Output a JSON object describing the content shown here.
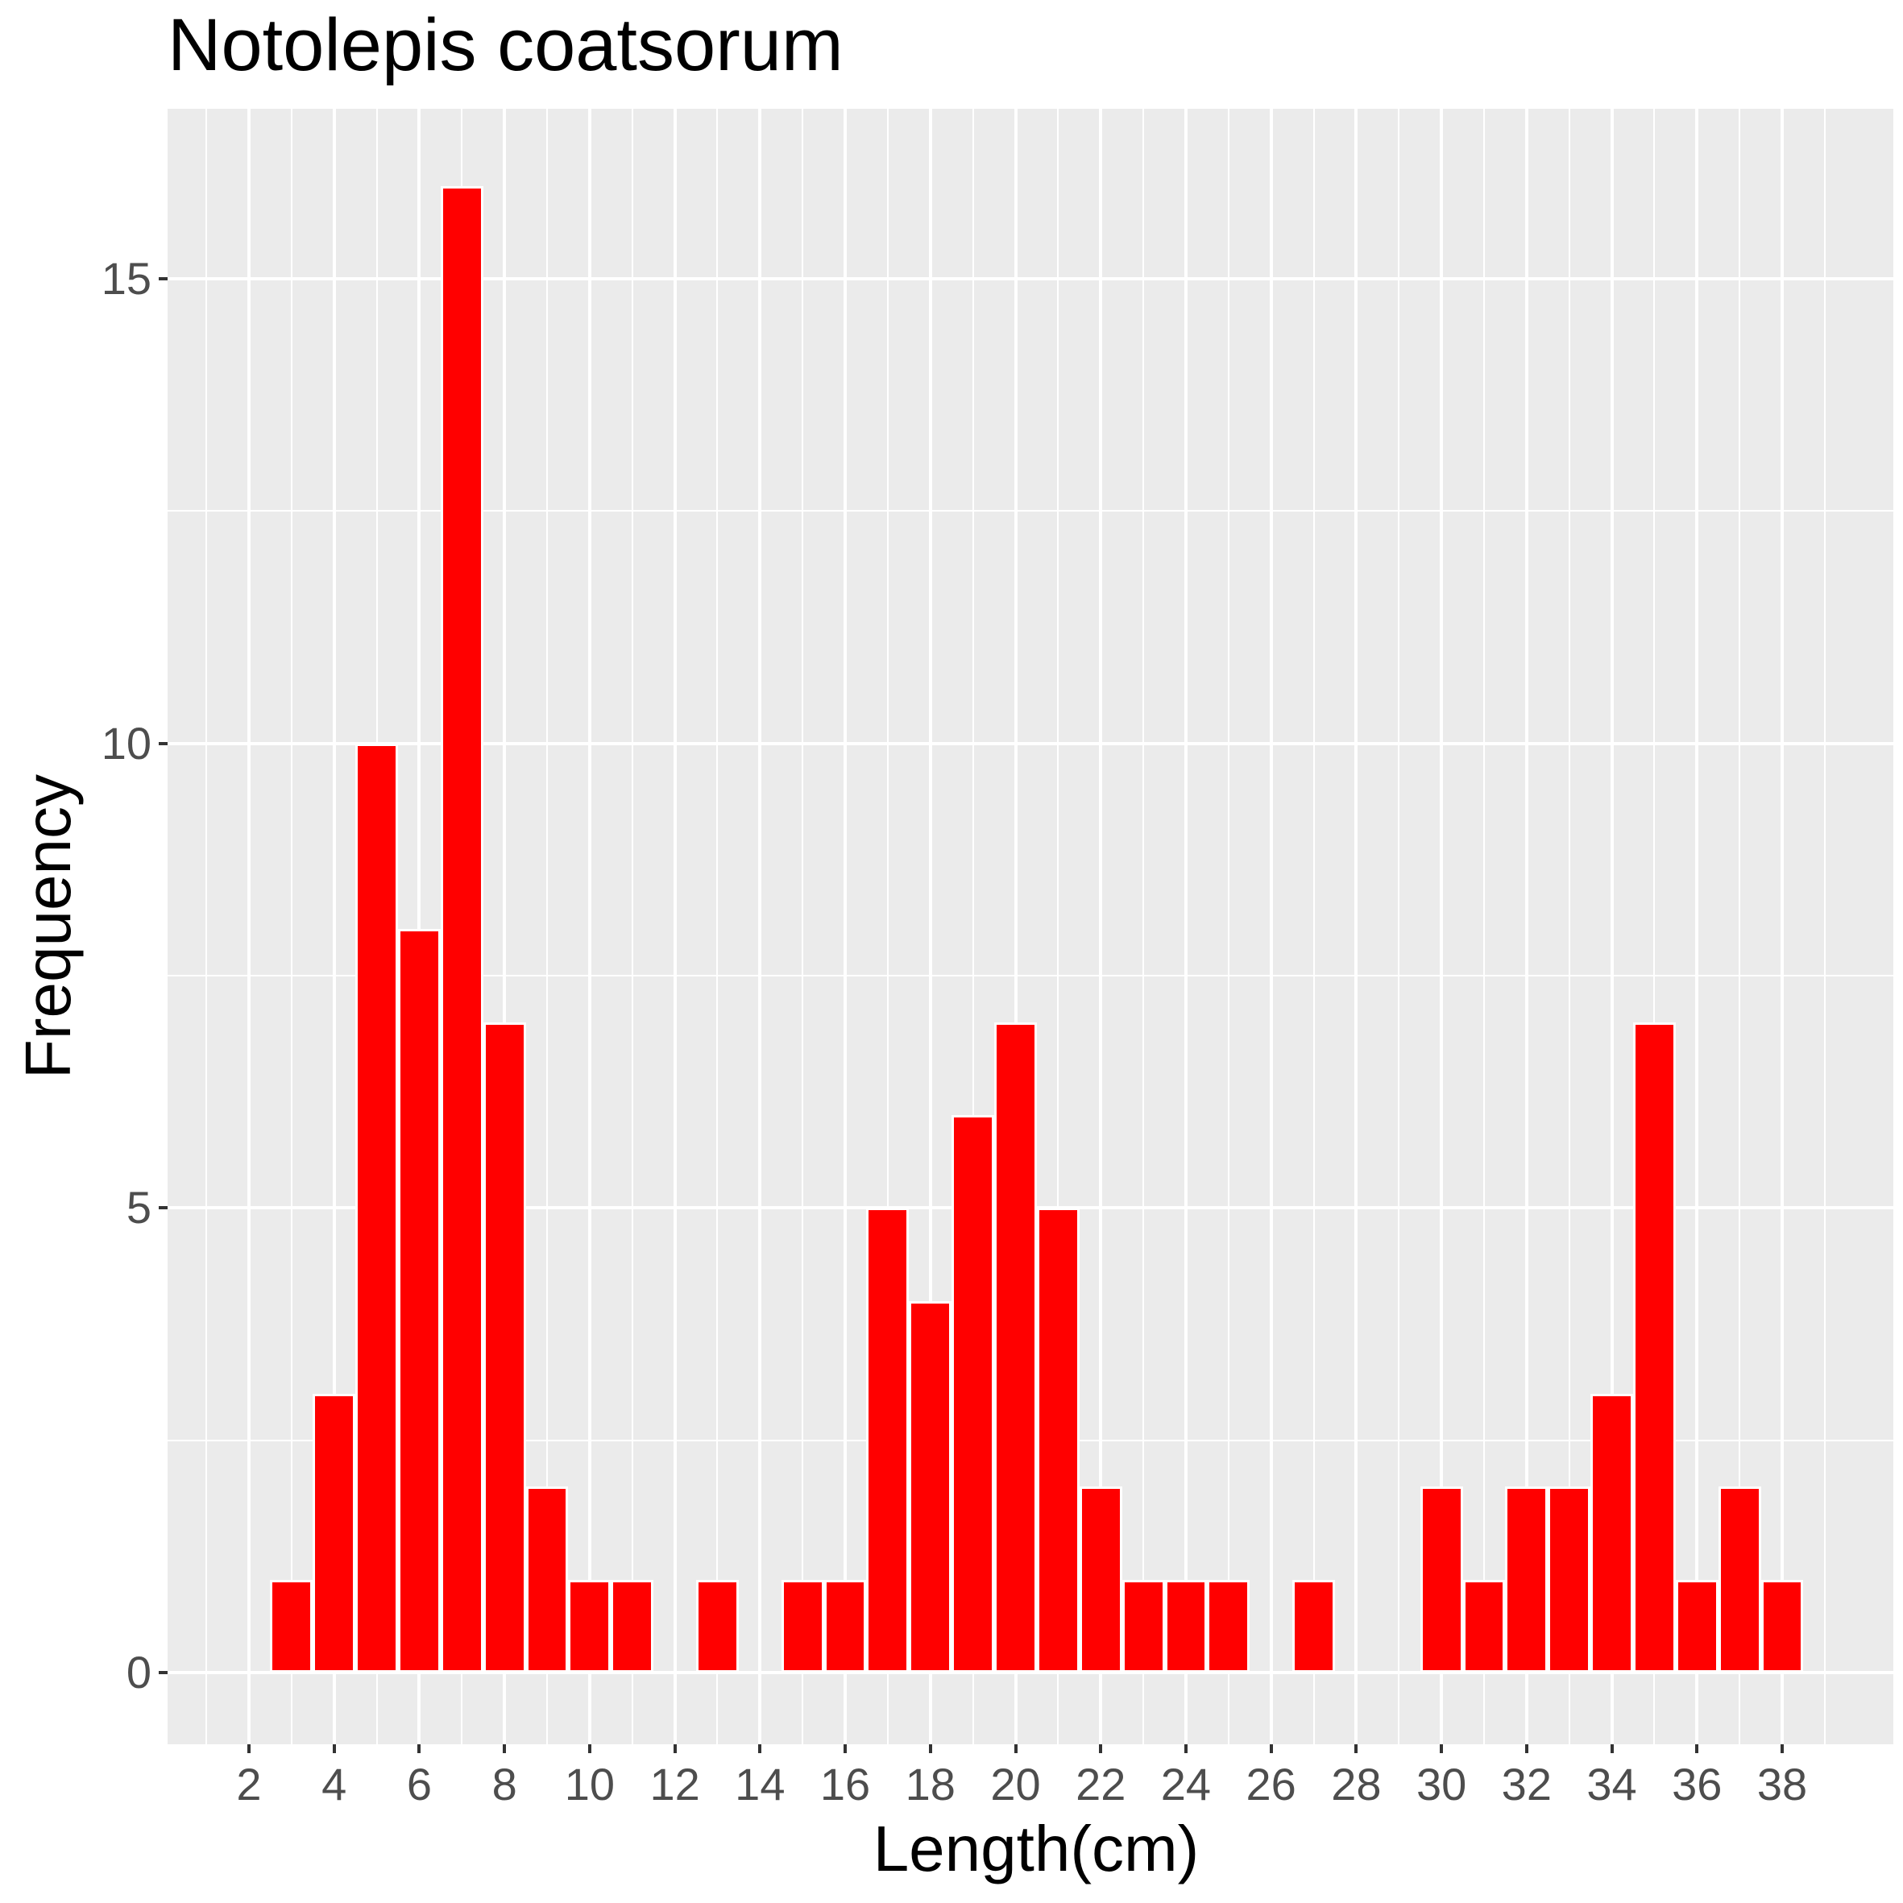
{
  "chart_data": {
    "type": "bar",
    "title": "Notolepis coatsorum",
    "xlabel": "Length(cm)",
    "ylabel": "Frequency",
    "x": [
      3,
      4,
      5,
      6,
      7,
      8,
      9,
      10,
      11,
      12,
      13,
      14,
      15,
      16,
      17,
      18,
      19,
      20,
      21,
      22,
      23,
      24,
      25,
      26,
      27,
      28,
      29,
      30,
      31,
      32,
      33,
      34,
      35,
      36,
      37,
      38
    ],
    "values": [
      1,
      3,
      10,
      8,
      16,
      7,
      2,
      1,
      1,
      0,
      1,
      0,
      1,
      1,
      5,
      4,
      6,
      7,
      5,
      2,
      1,
      1,
      1,
      0,
      1,
      0,
      0,
      2,
      1,
      2,
      2,
      3,
      7,
      1,
      2,
      1
    ],
    "xticks": [
      2,
      4,
      6,
      8,
      10,
      12,
      14,
      16,
      18,
      20,
      22,
      24,
      26,
      28,
      30,
      32,
      34,
      36,
      38
    ],
    "yticks": [
      0,
      5,
      10,
      15
    ],
    "xlim": [
      -0.1,
      40.4
    ],
    "ylim": [
      -0.8,
      16.8
    ],
    "grid": true,
    "bar_color": "#ff0000",
    "bar_outline": "#ffffff",
    "panel_background": "#ebebeb",
    "legend": null
  }
}
